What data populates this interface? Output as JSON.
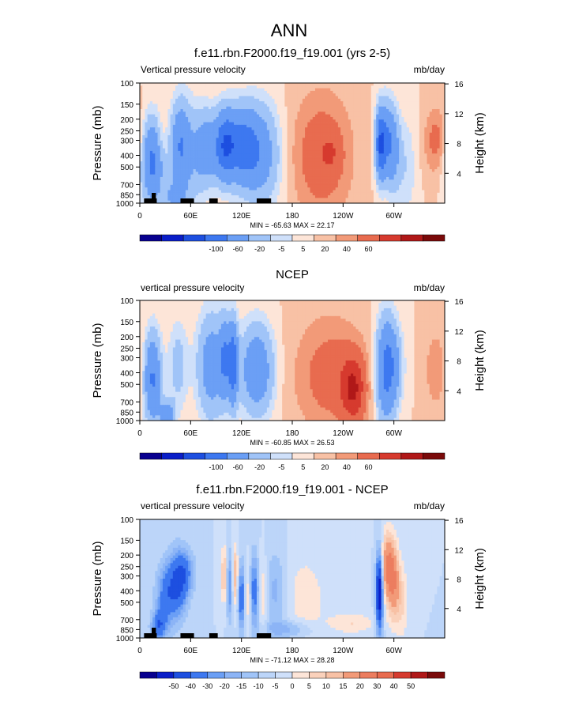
{
  "figure_title": "ANN",
  "colors": {
    "scale_a": [
      "#08008f",
      "#0a1ec8",
      "#1d4fe0",
      "#3d78f0",
      "#6b9ff5",
      "#a0c4f8",
      "#cfe0fa",
      "#fde5d8",
      "#f8c1a5",
      "#f29a78",
      "#e86b4f",
      "#d63a2e",
      "#b01818",
      "#7a0a0a"
    ],
    "scale_b": [
      "#08008f",
      "#0a1ec8",
      "#1d4fe0",
      "#3d78f0",
      "#6b9ff5",
      "#8cb4f6",
      "#a0c4f8",
      "#bcd5f9",
      "#cfe0fa",
      "#fde5d8",
      "#fad1bb",
      "#f8c1a5",
      "#f29a78",
      "#ec7d5f",
      "#e86b4f",
      "#d63a2e",
      "#b01818",
      "#7a0a0a"
    ],
    "land": "#000000"
  },
  "chart_data": [
    {
      "type": "heatmap",
      "title": "f.e11.rbn.F2000.f19_f19.001 (yrs 2-5)",
      "left_label": "Vertical pressure velocity",
      "right_label": "mb/day",
      "ylabel": "Pressure (mb)",
      "ylabel_right": "Height (km)",
      "x_ticks": [
        "0",
        "60E",
        "120E",
        "180",
        "120W",
        "60W"
      ],
      "y_ticks": [
        "100",
        "150",
        "200",
        "250",
        "300",
        "400",
        "500",
        "700",
        "850",
        "1000"
      ],
      "y_ticks_right": [
        "16",
        "12",
        "8",
        "4"
      ],
      "stats": "MIN = -65.63  MAX =  22.17",
      "colorbar_labels": [
        "-100",
        "-60",
        "-20",
        "-5",
        "5",
        "20",
        "40",
        "60"
      ],
      "colorbar_levels": [
        -120,
        -100,
        -80,
        -60,
        -40,
        -20,
        -10,
        -5,
        0,
        5,
        10,
        20,
        30,
        40,
        60
      ],
      "scale": "scale_a",
      "lon_range": [
        0,
        360
      ],
      "land_bars": [
        [
          5,
          20
        ],
        [
          48,
          64
        ],
        [
          82,
          92
        ],
        [
          138,
          155
        ]
      ],
      "land_bumps": [
        [
          14,
          19
        ]
      ],
      "features": [
        {
          "lon": 15,
          "p": 450,
          "w": 9,
          "h": 0.55,
          "v": -45
        },
        {
          "lon": 25,
          "p": 300,
          "w": 6,
          "h": 0.35,
          "v": 8
        },
        {
          "lon": 40,
          "p": 900,
          "w": 8,
          "h": 0.2,
          "v": -20
        },
        {
          "lon": 48,
          "p": 330,
          "w": 8,
          "h": 0.55,
          "v": -32
        },
        {
          "lon": 55,
          "p": 500,
          "w": 12,
          "h": 0.9,
          "v": -12
        },
        {
          "lon": 78,
          "p": 350,
          "w": 10,
          "h": 0.5,
          "v": -30
        },
        {
          "lon": 100,
          "p": 330,
          "w": 8,
          "h": 0.45,
          "v": -45
        },
        {
          "lon": 115,
          "p": 330,
          "w": 12,
          "h": 0.5,
          "v": -36
        },
        {
          "lon": 132,
          "p": 360,
          "w": 12,
          "h": 0.55,
          "v": -30
        },
        {
          "lon": 150,
          "p": 400,
          "w": 14,
          "h": 0.7,
          "v": -18
        },
        {
          "lon": 215,
          "p": 400,
          "w": 25,
          "h": 0.85,
          "v": 16
        },
        {
          "lon": 225,
          "p": 380,
          "w": 8,
          "h": 0.25,
          "v": 8
        },
        {
          "lon": 284,
          "p": 330,
          "w": 4,
          "h": 0.45,
          "v": -48
        },
        {
          "lon": 292,
          "p": 300,
          "w": 7,
          "h": 0.5,
          "v": -35
        },
        {
          "lon": 300,
          "p": 400,
          "w": 6,
          "h": 0.55,
          "v": -16
        },
        {
          "lon": 315,
          "p": 500,
          "w": 8,
          "h": 0.7,
          "v": -9
        },
        {
          "lon": 350,
          "p": 300,
          "w": 10,
          "h": 0.45,
          "v": 13
        }
      ]
    },
    {
      "type": "heatmap",
      "title": "NCEP",
      "left_label": "vertical pressure velocity",
      "right_label": "mb/day",
      "ylabel": "Pressure (mb)",
      "ylabel_right": "Height (km)",
      "x_ticks": [
        "0",
        "60E",
        "120E",
        "180",
        "120W",
        "60W"
      ],
      "y_ticks": [
        "100",
        "150",
        "200",
        "250",
        "300",
        "400",
        "500",
        "700",
        "850",
        "1000"
      ],
      "y_ticks_right": [
        "16",
        "12",
        "8",
        "4"
      ],
      "stats": "MIN = -60.85  MAX =  26.53",
      "colorbar_labels": [
        "-100",
        "-60",
        "-20",
        "-5",
        "5",
        "20",
        "40",
        "60"
      ],
      "colorbar_levels": [
        -120,
        -100,
        -80,
        -60,
        -40,
        -20,
        -10,
        -5,
        0,
        5,
        10,
        20,
        30,
        40,
        60
      ],
      "scale": "scale_a",
      "lon_range": [
        0,
        360
      ],
      "land_bars": [],
      "land_bumps": [],
      "features": [
        {
          "lon": 15,
          "p": 450,
          "w": 7,
          "h": 0.6,
          "v": -42
        },
        {
          "lon": 32,
          "p": 900,
          "w": 6,
          "h": 0.2,
          "v": -30
        },
        {
          "lon": 45,
          "p": 350,
          "w": 8,
          "h": 0.6,
          "v": -14
        },
        {
          "lon": 85,
          "p": 350,
          "w": 12,
          "h": 0.7,
          "v": -30
        },
        {
          "lon": 100,
          "p": 300,
          "w": 4,
          "h": 0.5,
          "v": -32
        },
        {
          "lon": 110,
          "p": 330,
          "w": 4,
          "h": 0.55,
          "v": -50
        },
        {
          "lon": 138,
          "p": 380,
          "w": 14,
          "h": 0.6,
          "v": -34
        },
        {
          "lon": 225,
          "p": 420,
          "w": 30,
          "h": 0.8,
          "v": 14
        },
        {
          "lon": 252,
          "p": 550,
          "w": 10,
          "h": 0.45,
          "v": 25
        },
        {
          "lon": 290,
          "p": 380,
          "w": 8,
          "h": 0.7,
          "v": -40
        },
        {
          "lon": 300,
          "p": 350,
          "w": 8,
          "h": 0.55,
          "v": -20
        },
        {
          "lon": 350,
          "p": 380,
          "w": 10,
          "h": 0.55,
          "v": 9
        }
      ]
    },
    {
      "type": "heatmap",
      "title": "f.e11.rbn.F2000.f19_f19.001 - NCEP",
      "left_label": "vertical pressure velocity",
      "right_label": "mb/day",
      "ylabel": "Pressure (mb)",
      "ylabel_right": "Height (km)",
      "x_ticks": [
        "0",
        "60E",
        "120E",
        "180",
        "120W",
        "60W"
      ],
      "y_ticks": [
        "100",
        "150",
        "200",
        "250",
        "300",
        "400",
        "500",
        "700",
        "850",
        "1000"
      ],
      "y_ticks_right": [
        "16",
        "12",
        "8",
        "4"
      ],
      "stats": "MIN = -71.12  MAX =  28.28",
      "colorbar_labels": [
        "-50",
        "-40",
        "-30",
        "-20",
        "-15",
        "-10",
        "-5",
        "0",
        "5",
        "10",
        "15",
        "20",
        "30",
        "40",
        "50"
      ],
      "colorbar_levels": [
        -60,
        -50,
        -40,
        -30,
        -20,
        -15,
        -10,
        -5,
        0,
        5,
        10,
        15,
        20,
        30,
        40,
        50,
        60
      ],
      "scale": "scale_b",
      "lon_range": [
        0,
        360
      ],
      "land_bars": [
        [
          5,
          20
        ],
        [
          48,
          64
        ],
        [
          82,
          92
        ],
        [
          138,
          155
        ]
      ],
      "land_bumps": [
        [
          14,
          19
        ]
      ],
      "features": [
        {
          "lon": 30,
          "p": 450,
          "w": 8,
          "h": 0.45,
          "v": -22
        },
        {
          "lon": 45,
          "p": 350,
          "w": 8,
          "h": 0.45,
          "v": -30
        },
        {
          "lon": 22,
          "p": 800,
          "w": 6,
          "h": 0.2,
          "v": -25
        },
        {
          "lon": 55,
          "p": 280,
          "w": 8,
          "h": 0.3,
          "v": -15
        },
        {
          "lon": 100,
          "p": 300,
          "w": 3,
          "h": 0.4,
          "v": 18
        },
        {
          "lon": 106,
          "p": 350,
          "w": 3,
          "h": 0.45,
          "v": -25
        },
        {
          "lon": 112,
          "p": 300,
          "w": 3,
          "h": 0.4,
          "v": 22
        },
        {
          "lon": 120,
          "p": 450,
          "w": 3,
          "h": 0.45,
          "v": -28
        },
        {
          "lon": 128,
          "p": 450,
          "w": 3,
          "h": 0.45,
          "v": 12
        },
        {
          "lon": 135,
          "p": 400,
          "w": 4,
          "h": 0.5,
          "v": -25
        },
        {
          "lon": 145,
          "p": 420,
          "w": 4,
          "h": 0.5,
          "v": 12
        },
        {
          "lon": 160,
          "p": 400,
          "w": 10,
          "h": 0.55,
          "v": -12
        },
        {
          "lon": 195,
          "p": 450,
          "w": 18,
          "h": 0.6,
          "v": 8
        },
        {
          "lon": 175,
          "p": 850,
          "w": 20,
          "h": 0.12,
          "v": -12
        },
        {
          "lon": 250,
          "p": 750,
          "w": 20,
          "h": 0.15,
          "v": 10
        },
        {
          "lon": 283,
          "p": 400,
          "w": 3,
          "h": 0.55,
          "v": -55
        },
        {
          "lon": 292,
          "p": 250,
          "w": 6,
          "h": 0.45,
          "v": 30
        },
        {
          "lon": 300,
          "p": 350,
          "w": 5,
          "h": 0.5,
          "v": 24
        },
        {
          "lon": 310,
          "p": 500,
          "w": 5,
          "h": 0.5,
          "v": 10
        },
        {
          "lon": 345,
          "p": 300,
          "w": 10,
          "h": 0.45,
          "v": 6
        },
        {
          "lon": 355,
          "p": 500,
          "w": 8,
          "h": 0.6,
          "v": -5
        }
      ]
    }
  ]
}
